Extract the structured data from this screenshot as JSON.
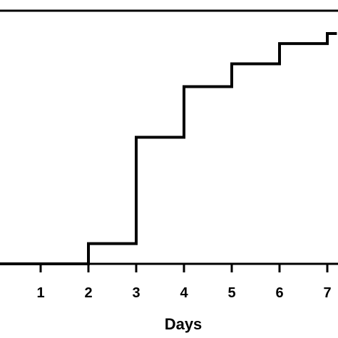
{
  "chart_data": {
    "type": "line",
    "step": true,
    "xlabel": "Days",
    "ylabel": "",
    "title": "",
    "xticks": [
      1,
      2,
      3,
      4,
      5,
      6,
      7
    ],
    "xlim": [
      0,
      7.2
    ],
    "ylim": [
      0,
      1
    ],
    "grid": false,
    "series": [
      {
        "x": [
          0,
          2,
          3,
          4,
          5,
          6,
          7,
          7.2
        ],
        "y": [
          0,
          0.08,
          0.5,
          0.7,
          0.79,
          0.87,
          0.91,
          0.91
        ]
      }
    ],
    "colors": {
      "line": "#000000",
      "axis": "#000000"
    }
  }
}
